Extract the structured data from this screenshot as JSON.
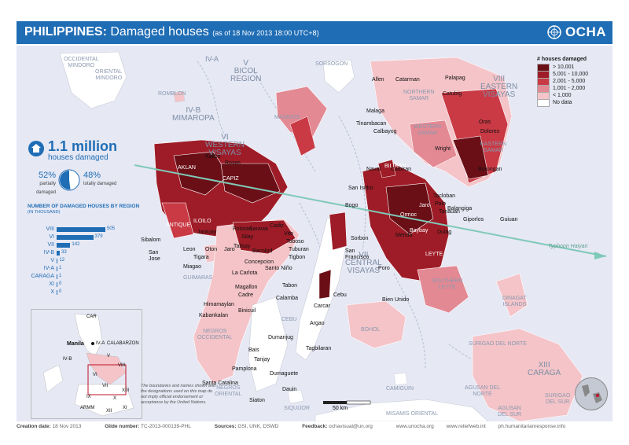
{
  "header": {
    "title_bold": "PHILIPPINES:",
    "title_rest": "Damaged houses",
    "subtitle": "(as of 18 Nov 2013 18:00 UTC+8)",
    "logo_text": "OCHA"
  },
  "legend": {
    "title": "# houses damaged",
    "items": [
      {
        "label": "> 10,001",
        "color": "#6b0f17"
      },
      {
        "label": "5,001 - 10,000",
        "color": "#9e1c27"
      },
      {
        "label": "2,001 - 5,000",
        "color": "#c93a45"
      },
      {
        "label": "1,001 - 2,000",
        "color": "#e38993"
      },
      {
        "label": "< 1,000",
        "color": "#f4c4c8"
      },
      {
        "label": "No data",
        "color": "#ffffff"
      }
    ]
  },
  "summary": {
    "total": "1.1 million",
    "caption": "houses damaged",
    "partially_pct": "52%",
    "partially_label": "partially damaged",
    "totally_pct": "48%",
    "totally_label": "totally damaged",
    "partially_fraction": 0.52
  },
  "region_bars": {
    "title": "NUMBER OF DAMAGED HOUSES BY REGION",
    "unit": "(IN THOUSAND)",
    "rows": [
      {
        "region": "VIII",
        "value": 505
      },
      {
        "region": "VI",
        "value": 379
      },
      {
        "region": "VII",
        "value": 142
      },
      {
        "region": "IV-B",
        "value": 33
      },
      {
        "region": "V",
        "value": 12
      },
      {
        "region": "IV-A",
        "value": 1
      },
      {
        "region": "CARAGA",
        "value": 1
      },
      {
        "region": "XI",
        "value": 0
      },
      {
        "region": "X",
        "value": 0
      }
    ]
  },
  "regions": {
    "iva": "IV-A",
    "v": "V\nBICOL\nREGION",
    "ivb": "IV-B\nMIMAROPA",
    "vi": "VI\nWESTERN\nVISAYAS",
    "viii": "VIII\nEASTERN\nVISAYAS",
    "vii": "VII\nCENTRAL\nVISAYAS",
    "xiii": "XIII\nCARAGA"
  },
  "provinces": {
    "occ_mindoro": "OCCIDENTAL\nMINDORO",
    "ori_mindoro": "ORIENTAL\nMINDORO",
    "romblon": "ROMBLON",
    "sorsogon": "SORSOGON",
    "masbate": "MASBATE",
    "northern_samar": "NORTHERN\nSAMAR",
    "western_samar": "WESTERN\nSAMAR",
    "eastern_samar": "EASTERN\nSAMAR",
    "aklan": "AKLAN",
    "capiz": "CAPIZ",
    "antique": "ANTIQUE",
    "iloilo": "ILOILO",
    "guimaras": "GUIMARAS",
    "biliran": "BILIRAN",
    "leyte": "LEYTE",
    "southern_leyte": "SOUTHERN\nLEYTE",
    "cebu": "CEBU",
    "bohol": "BOHOL",
    "negros_occ": "NEGROS\nOCCIDENTAL",
    "negros_ori": "NEGROS\nORIENTAL",
    "siquijor": "SIQUIJOR",
    "dinagat": "DINAGAT\nISLANDS",
    "surigao_norte": "SURIGAO DEL NORTE",
    "agusan_norte": "AGUSAN DEL\nNORTE",
    "agusan_sur": "AGUSAN\nDEL SUR",
    "surigao_sur": "SURIGAO\nDEL SUR",
    "camiguin": "CAMIGUIN",
    "misamis_ori": "MISAMIS ORIENTAL"
  },
  "towns": {
    "allen": "Allen",
    "catarman": "Catarman",
    "palapag": "Palapag",
    "catubig": "Catubig",
    "malaga": "Malaga",
    "tinambacan": "Tinambacan",
    "calbayog": "Calbayog",
    "oras": "Oras",
    "dolores": "Dolores",
    "wright": "Wright",
    "borongan": "Borongan",
    "naval": "Naval",
    "caibiran": "Caibiran",
    "sanisidro": "San Isidro",
    "tacloban": "Tacloban",
    "palo": "Palo",
    "tanauan": "Tanauan",
    "balangiga": "Balangiga",
    "giporlos": "Giporlos",
    "guiuan": "Guiuan",
    "dulag": "Dulag",
    "merida": "Merida",
    "ormoc": "Ormoc",
    "jaro_l": "Jaro",
    "baybay": "Baybay",
    "bogo": "Bogo",
    "sorbon": "Sorbon",
    "sanfrancisco": "San\nFrancisco",
    "poro": "Poro",
    "cebu": "Cebu",
    "bienunido": "Bien Unido",
    "kalibo": "Kalibo",
    "roxas": "Roxas",
    "sibalom": "Sibalom",
    "sanjose": "San\nJose",
    "janiuay": "Janiuay",
    "leon": "Leon",
    "tigara": "Tigara",
    "oton": "Oton",
    "jaro": "Jaro",
    "miagao": "Miagao",
    "pototan": "Pototan",
    "silay": "Silay",
    "talisay": "Talisay",
    "bacolod": "Bacolod",
    "saravia": "Saravia",
    "cadiz": "Cadiz",
    "vito": "Vito",
    "toboso": "Toboso",
    "tuburan": "Tuburan",
    "tigbon": "Tigbon",
    "concepcion": "Concepcion",
    "lacarlota": "La Carlota",
    "santonino": "Santo Niño",
    "magallon": "Magallon",
    "cadre": "Cadre",
    "tabon": "Tabon",
    "calamba": "Calamba",
    "carcar": "Carcar",
    "argao": "Argao",
    "dumanjug": "Dumanjug",
    "himamaylan": "Himamaylan",
    "kabankalan": "Kabankalan",
    "binicuil": "Binicuil",
    "tagbilaran": "Tagbilaran",
    "bais": "Bais",
    "tanjay": "Tanjay",
    "pamplona": "Pamplona",
    "dumaguete": "Dumaguete",
    "santacatalina": "Santa Catalina",
    "dauin": "Dauin",
    "siaton": "Siaton"
  },
  "track_label": "Typhoon Haiyan",
  "inset": {
    "car": "CAR",
    "manila": "Manila",
    "iva": "IV-A",
    "calabarzon": "CALABARZON",
    "ivb": "IV-B",
    "v": "V",
    "vi": "VI",
    "vii": "VII",
    "viii": "VIII",
    "xiii": "XIII",
    "ix": "IX",
    "x": "X",
    "xi": "XI",
    "xii": "XII",
    "armm": "ARMM"
  },
  "disclaimer": "The boundaries and names shown and the designations used on this map do not imply official endorsement or acceptance by the United Nations.",
  "scale_label": "50 km",
  "footer": {
    "creation_label": "Creation date:",
    "creation_value": "18 Nov 2013",
    "glide_label": "Glide number:",
    "glide_value": "TC-2013-000139-PHL",
    "sources_label": "Sources:",
    "sources_value": "GSI, UNK, DSWD",
    "feedback_label": "Feedback:",
    "feedback_value": "ochavisual@un.org",
    "web1": "www.unocha.org",
    "web2": "www.reliefweb.int",
    "web3": "ph.humanitarianresponse.info"
  },
  "colors": {
    "header_blue": "#1f6db5",
    "sea": "#e6e8f4",
    "track": "#7fc9b8"
  }
}
